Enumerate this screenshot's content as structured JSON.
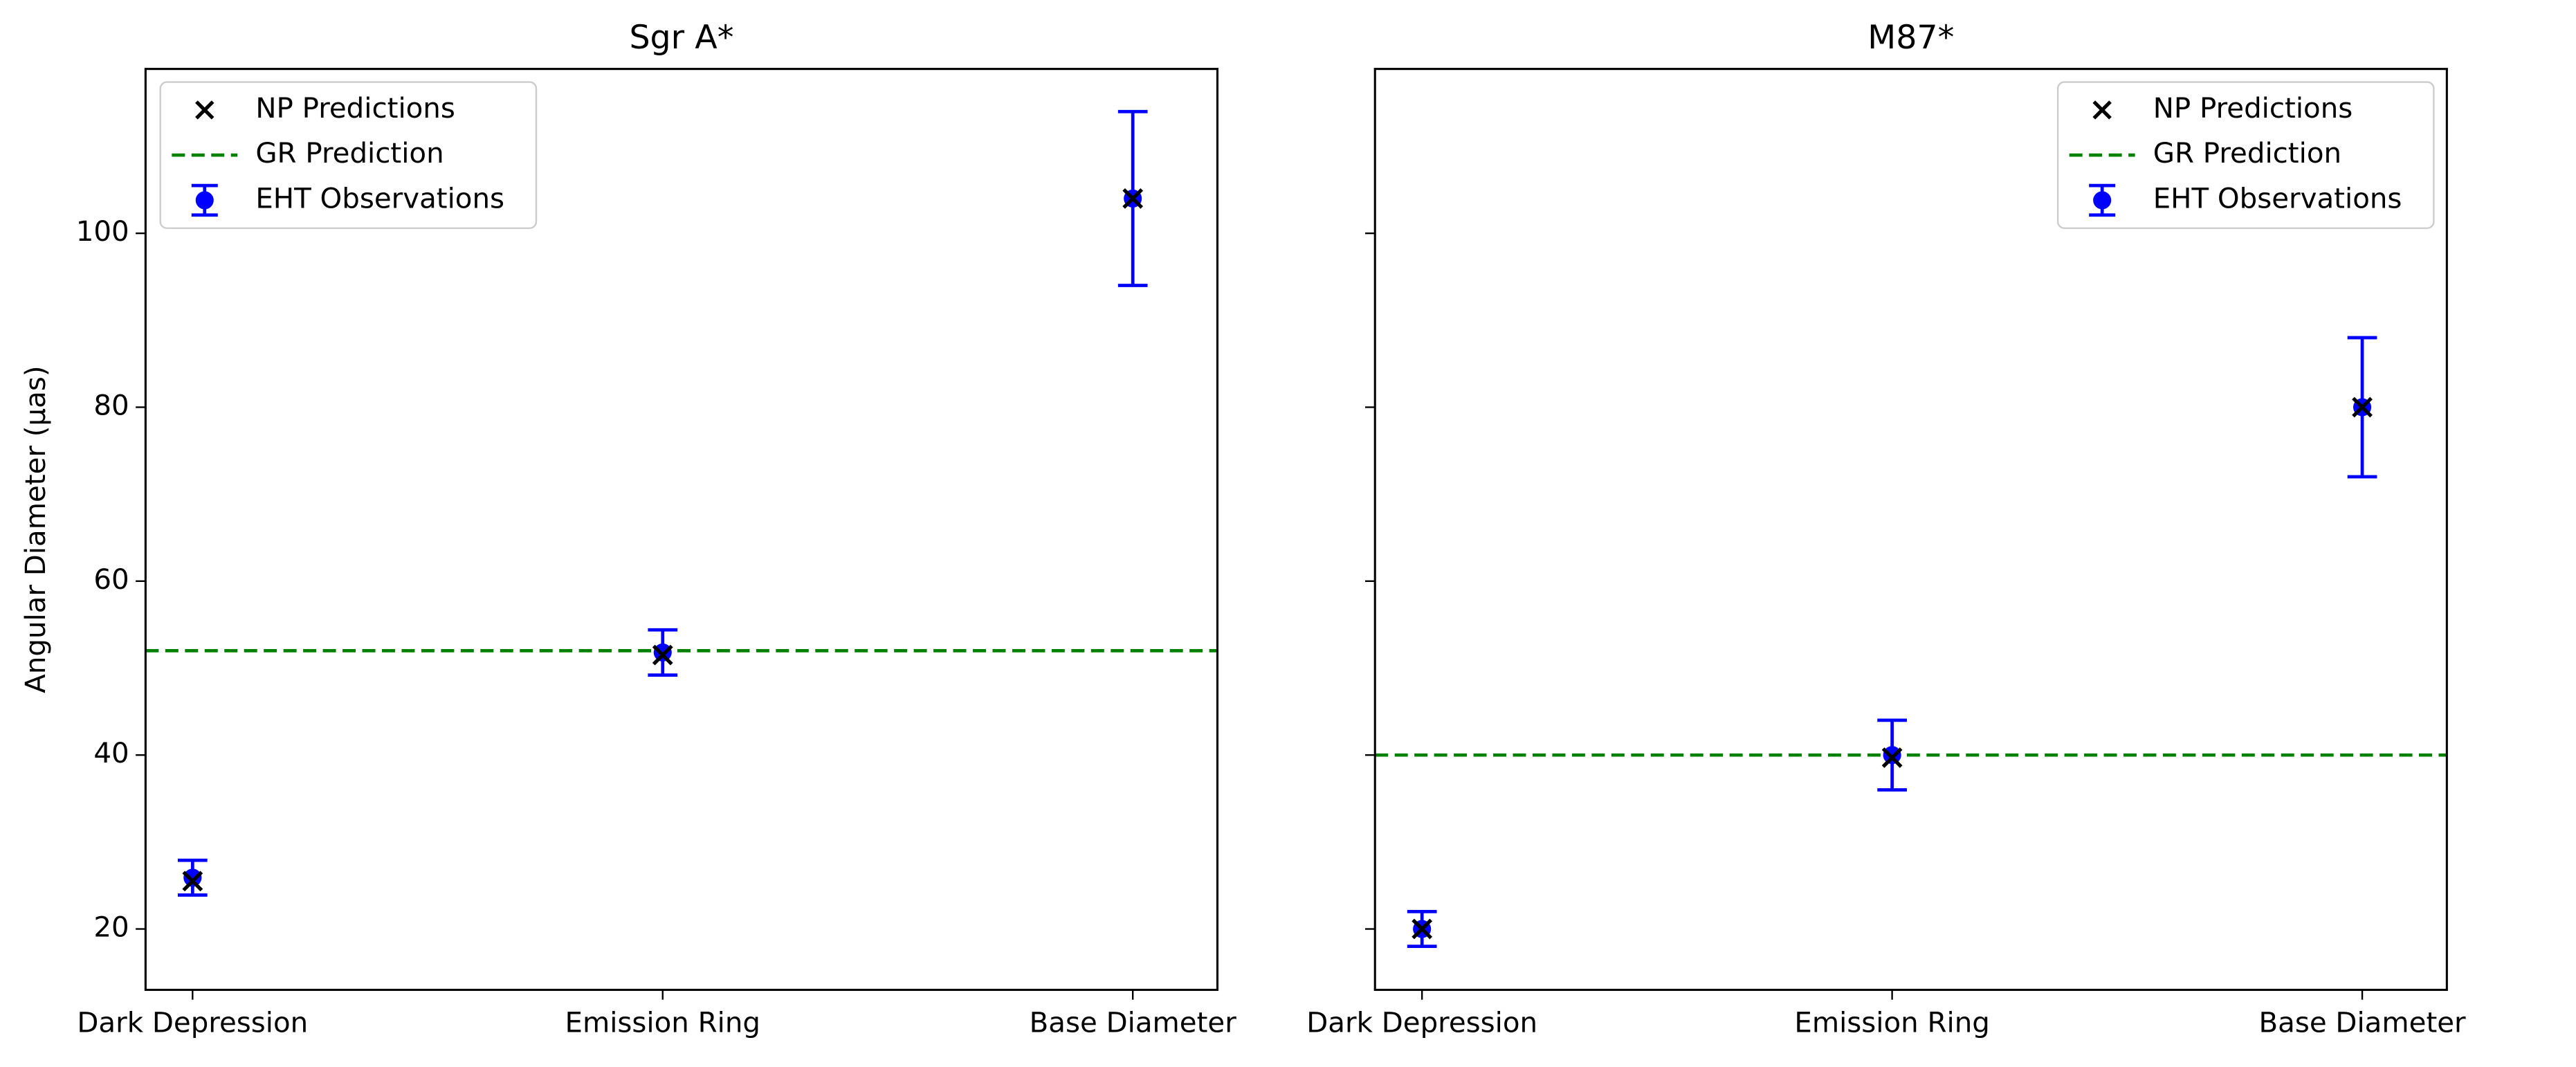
{
  "chart_data": [
    {
      "type": "errorbar",
      "title": "Sgr A*",
      "ylabel": "Angular Diameter (μas)",
      "categories": [
        "Dark Depression",
        "Emission Ring",
        "Base Diameter"
      ],
      "xlim": [
        -0.1,
        2.18
      ],
      "ylim": [
        13,
        118.9
      ],
      "yticks": [
        20,
        40,
        60,
        80,
        100
      ],
      "ytick_labels": true,
      "legend": "upper left",
      "series": [
        {
          "name": "NP Predictions",
          "color": "#000000",
          "marker": "x",
          "values": [
            25.5,
            51.5,
            104
          ]
        },
        {
          "name": "EHT Observations",
          "color": "#0000ff",
          "marker": "o",
          "values": [
            25.9,
            51.8,
            104
          ],
          "errors": [
            2,
            2.6,
            10
          ]
        }
      ],
      "reference": {
        "name": "GR Prediction",
        "color": "#008000",
        "value": 52
      }
    },
    {
      "type": "errorbar",
      "title": "M87*",
      "categories": [
        "Dark Depression",
        "Emission Ring",
        "Base Diameter"
      ],
      "xlim": [
        -0.1,
        2.18
      ],
      "ylim": [
        13,
        118.9
      ],
      "yticks": [
        20,
        40,
        60,
        80,
        100
      ],
      "ytick_labels": false,
      "legend": "upper right",
      "series": [
        {
          "name": "NP Predictions",
          "color": "#000000",
          "marker": "x",
          "values": [
            20,
            39.7,
            80
          ]
        },
        {
          "name": "EHT Observations",
          "color": "#0000ff",
          "marker": "o",
          "values": [
            20,
            40,
            80
          ],
          "errors": [
            2,
            4,
            8
          ]
        }
      ],
      "reference": {
        "name": "GR Prediction",
        "color": "#008000",
        "value": 40
      }
    }
  ]
}
